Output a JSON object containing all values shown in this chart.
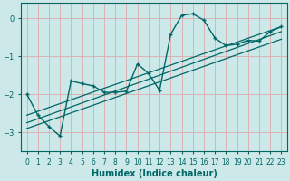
{
  "xlabel": "Humidex (Indice chaleur)",
  "bg_color": "#cce8e8",
  "grid_color": "#aacccc",
  "line_color": "#006666",
  "xlim": [
    -0.5,
    23.5
  ],
  "ylim": [
    -3.5,
    0.4
  ],
  "yticks": [
    0,
    -1,
    -2,
    -3
  ],
  "xticks": [
    0,
    1,
    2,
    3,
    4,
    5,
    6,
    7,
    8,
    9,
    10,
    11,
    12,
    13,
    14,
    15,
    16,
    17,
    18,
    19,
    20,
    21,
    22,
    23
  ],
  "curve_x": [
    0,
    1,
    2,
    3,
    4,
    5,
    6,
    7,
    8,
    9,
    10,
    11,
    12,
    13,
    14,
    15,
    16,
    17,
    18,
    19,
    20,
    21,
    22,
    23
  ],
  "curve_y": [
    -2.0,
    -2.55,
    -2.85,
    -3.1,
    -1.65,
    -1.72,
    -1.78,
    -1.95,
    -1.95,
    -1.92,
    -1.2,
    -1.45,
    -1.9,
    -0.42,
    0.08,
    0.12,
    -0.05,
    -0.52,
    -0.72,
    -0.68,
    -0.58,
    -0.6,
    -0.35,
    -0.22
  ],
  "line1_x": [
    0,
    23
  ],
  "line1_y": [
    -2.9,
    -0.55
  ],
  "line2_x": [
    0,
    23
  ],
  "line2_y": [
    -2.75,
    -0.35
  ],
  "line3_x": [
    0,
    23
  ],
  "line3_y": [
    -2.55,
    -0.22
  ]
}
